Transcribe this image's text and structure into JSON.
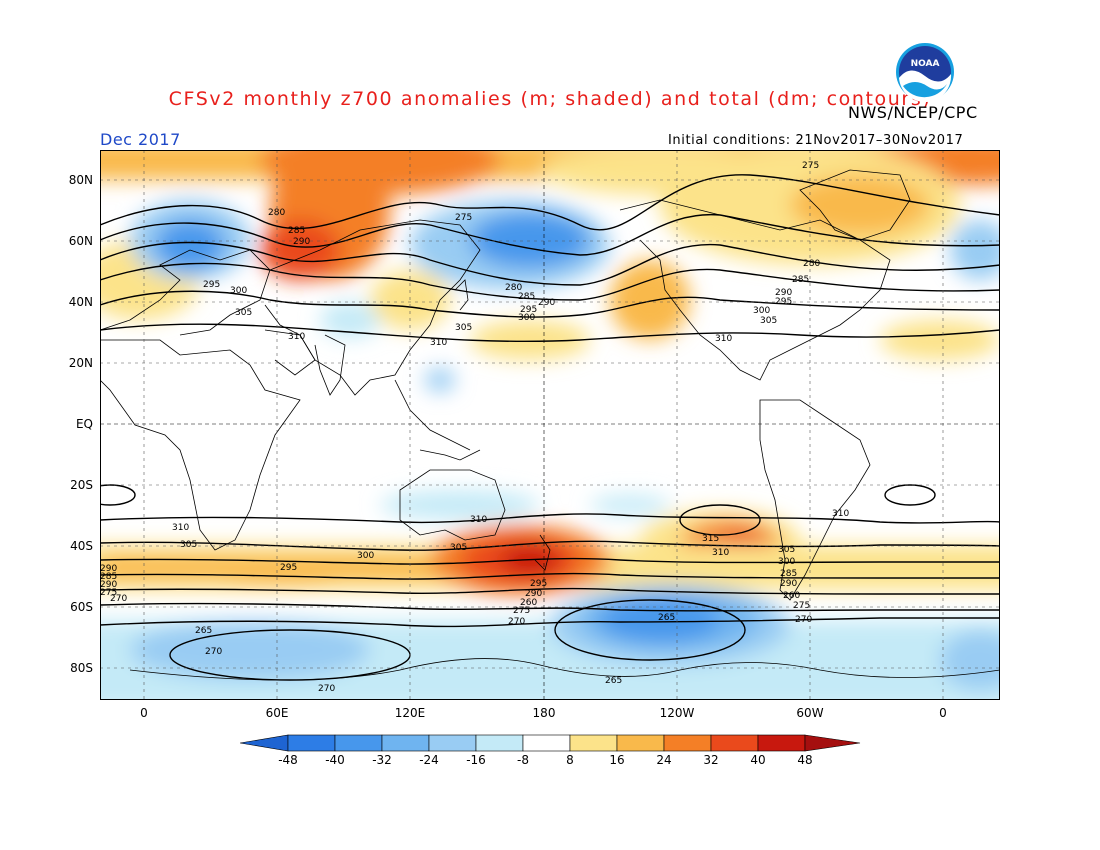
{
  "title": "CFSv2 monthly z700 anomalies (m; shaded) and total (dm; contours)",
  "agency": "NWS/NCEP/CPC",
  "logo_text": "NOAA",
  "month": "Dec 2017",
  "initial_conditions": "Initial conditions: 21Nov2017–30Nov2017",
  "lat_labels": [
    "80N",
    "60N",
    "40N",
    "20N",
    "EQ",
    "20S",
    "40S",
    "60S",
    "80S"
  ],
  "lon_labels": [
    "0",
    "60E",
    "120E",
    "180",
    "120W",
    "60W",
    "0"
  ],
  "colorbar": {
    "ticks": [
      "-48",
      "-40",
      "-32",
      "-24",
      "-16",
      "-8",
      "8",
      "16",
      "24",
      "32",
      "40",
      "48"
    ],
    "colors": [
      "#1e64d2",
      "#2d7de6",
      "#4797ec",
      "#6fb4f0",
      "#99ccf3",
      "#c4eaf7",
      "#ffffff",
      "#fce38a",
      "#f9b94b",
      "#f47f26",
      "#ea4a1c",
      "#c8180e",
      "#a50f0f"
    ]
  },
  "contour_labels": [
    "275",
    "280",
    "285",
    "290",
    "295",
    "300",
    "305",
    "310",
    "315",
    "265",
    "270",
    "260"
  ],
  "colors": {
    "title": "#e8201c",
    "month": "#1f49c8",
    "land_outline": "#000000"
  }
}
